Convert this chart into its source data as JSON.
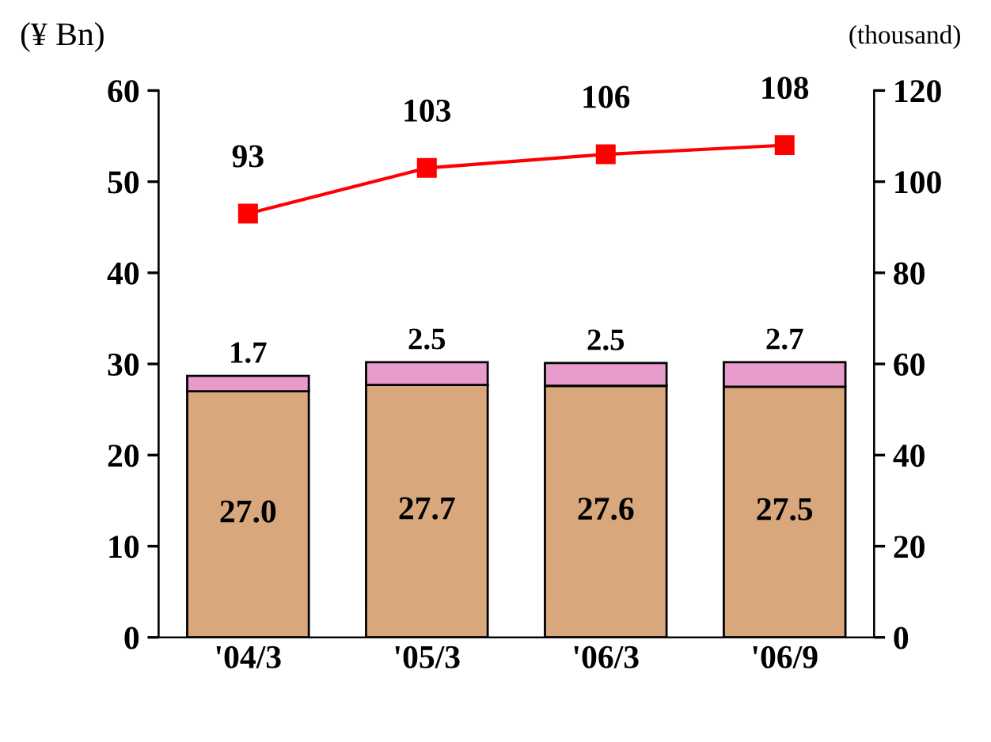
{
  "chart_data": {
    "type": "bar",
    "stacked": true,
    "ylabel": "(¥ Bn)",
    "y2label": "(thousand)",
    "categories": [
      "'04/3",
      "'05/3",
      "'06/3",
      "'06/9"
    ],
    "series": [
      {
        "color": "#d9a77c",
        "values": [
          27.0,
          27.7,
          27.6,
          27.5
        ],
        "value_labels": [
          "27.0",
          "27.7",
          "27.6",
          "27.5"
        ]
      },
      {
        "color": "#e79ccb",
        "values": [
          1.7,
          2.5,
          2.5,
          2.7
        ],
        "value_labels": [
          "1.7",
          "2.5",
          "2.5",
          "2.7"
        ]
      },
      {
        "type": "line",
        "axis": "y2",
        "color": "#ff0000",
        "marker": "square",
        "values": [
          93,
          103,
          106,
          108
        ]
      }
    ],
    "data_labels": true,
    "ylim": [
      0,
      60
    ],
    "yticks": [
      0,
      10,
      20,
      30,
      40,
      50,
      60
    ],
    "y2lim": [
      0,
      120
    ],
    "y2ticks": [
      0,
      20,
      40,
      60,
      80,
      100,
      120
    ],
    "grid": false,
    "legend": false
  }
}
